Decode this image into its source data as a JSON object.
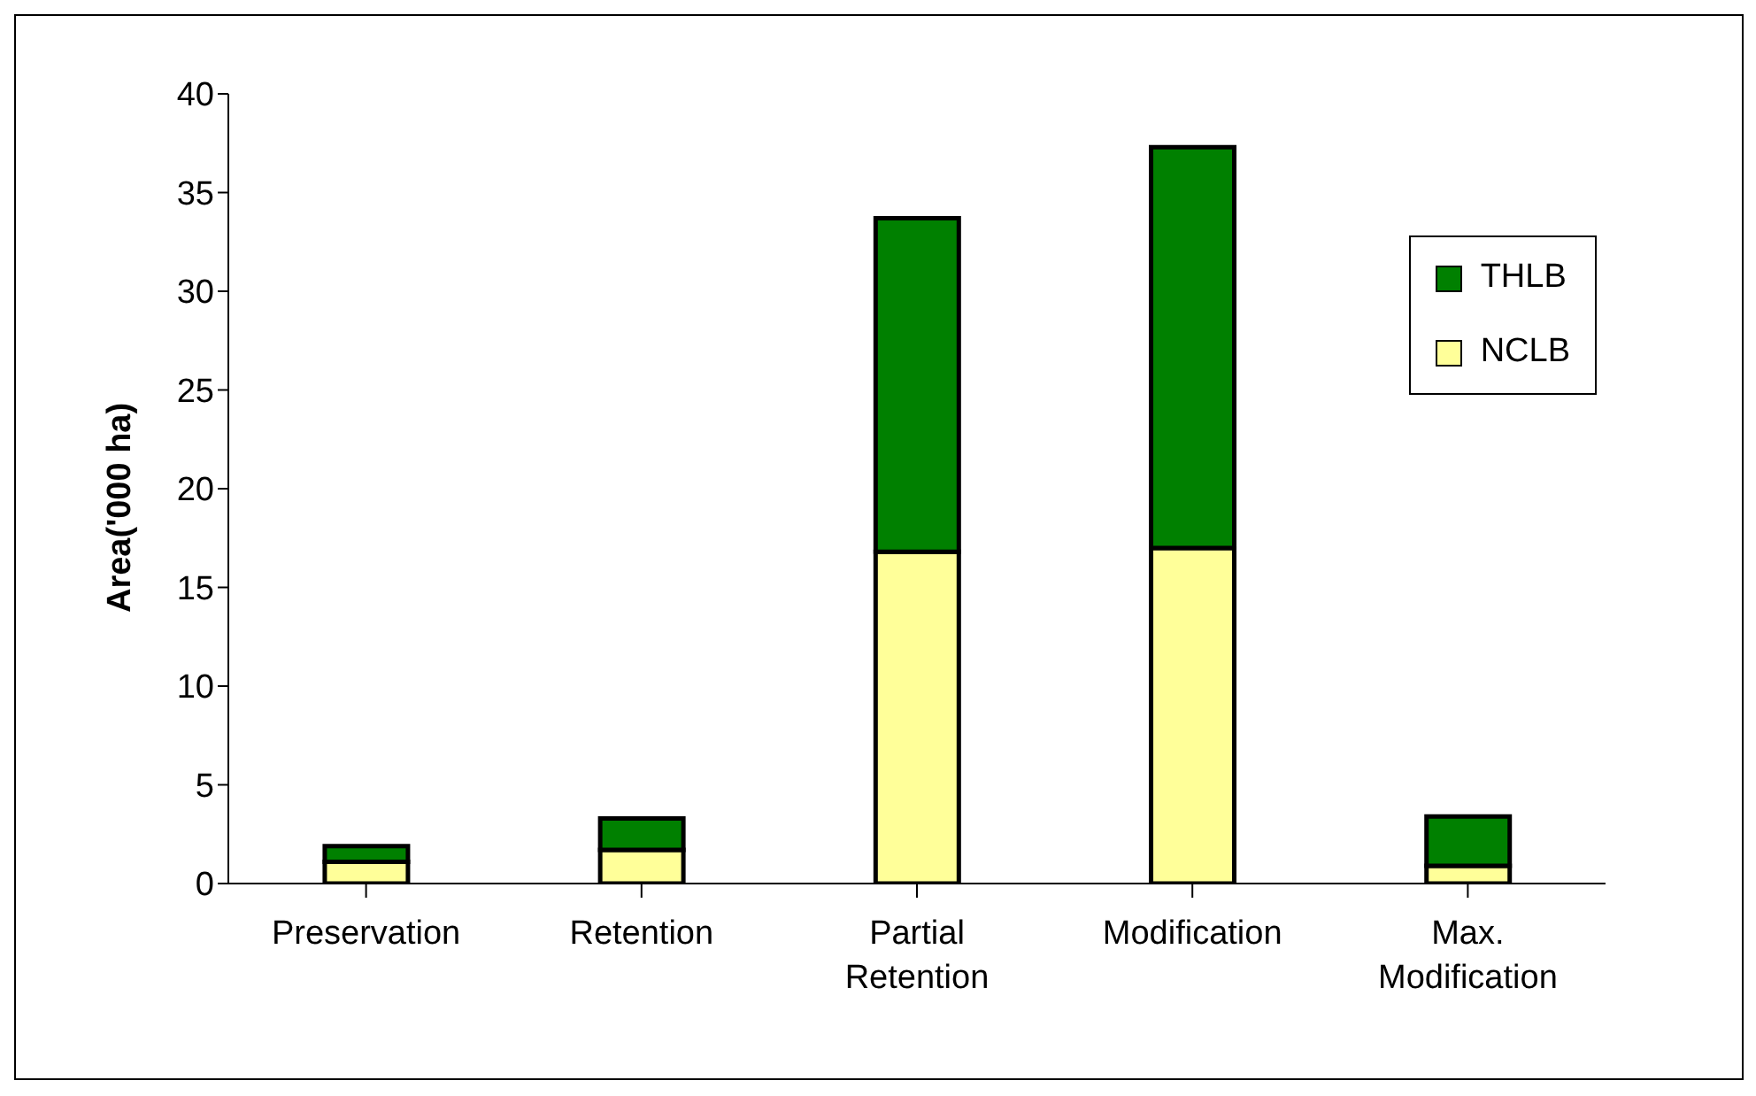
{
  "chart_data": {
    "type": "bar",
    "stacked": true,
    "ylabel": "Area('000 ha)",
    "categories": [
      "Preservation",
      "Retention",
      "Partial Retention",
      "Modification",
      "Max. Modification"
    ],
    "series": [
      {
        "name": "NCLB",
        "color": "#ffff99",
        "values": [
          1.1,
          1.7,
          16.8,
          17.0,
          0.9
        ]
      },
      {
        "name": "THLB",
        "color": "#008000",
        "values": [
          0.8,
          1.6,
          16.9,
          20.3,
          2.5
        ]
      }
    ],
    "ylim": [
      0,
      40
    ],
    "yticks": [
      0,
      5,
      10,
      15,
      20,
      25,
      30,
      35,
      40
    ],
    "grid": false,
    "legend": "top right"
  }
}
